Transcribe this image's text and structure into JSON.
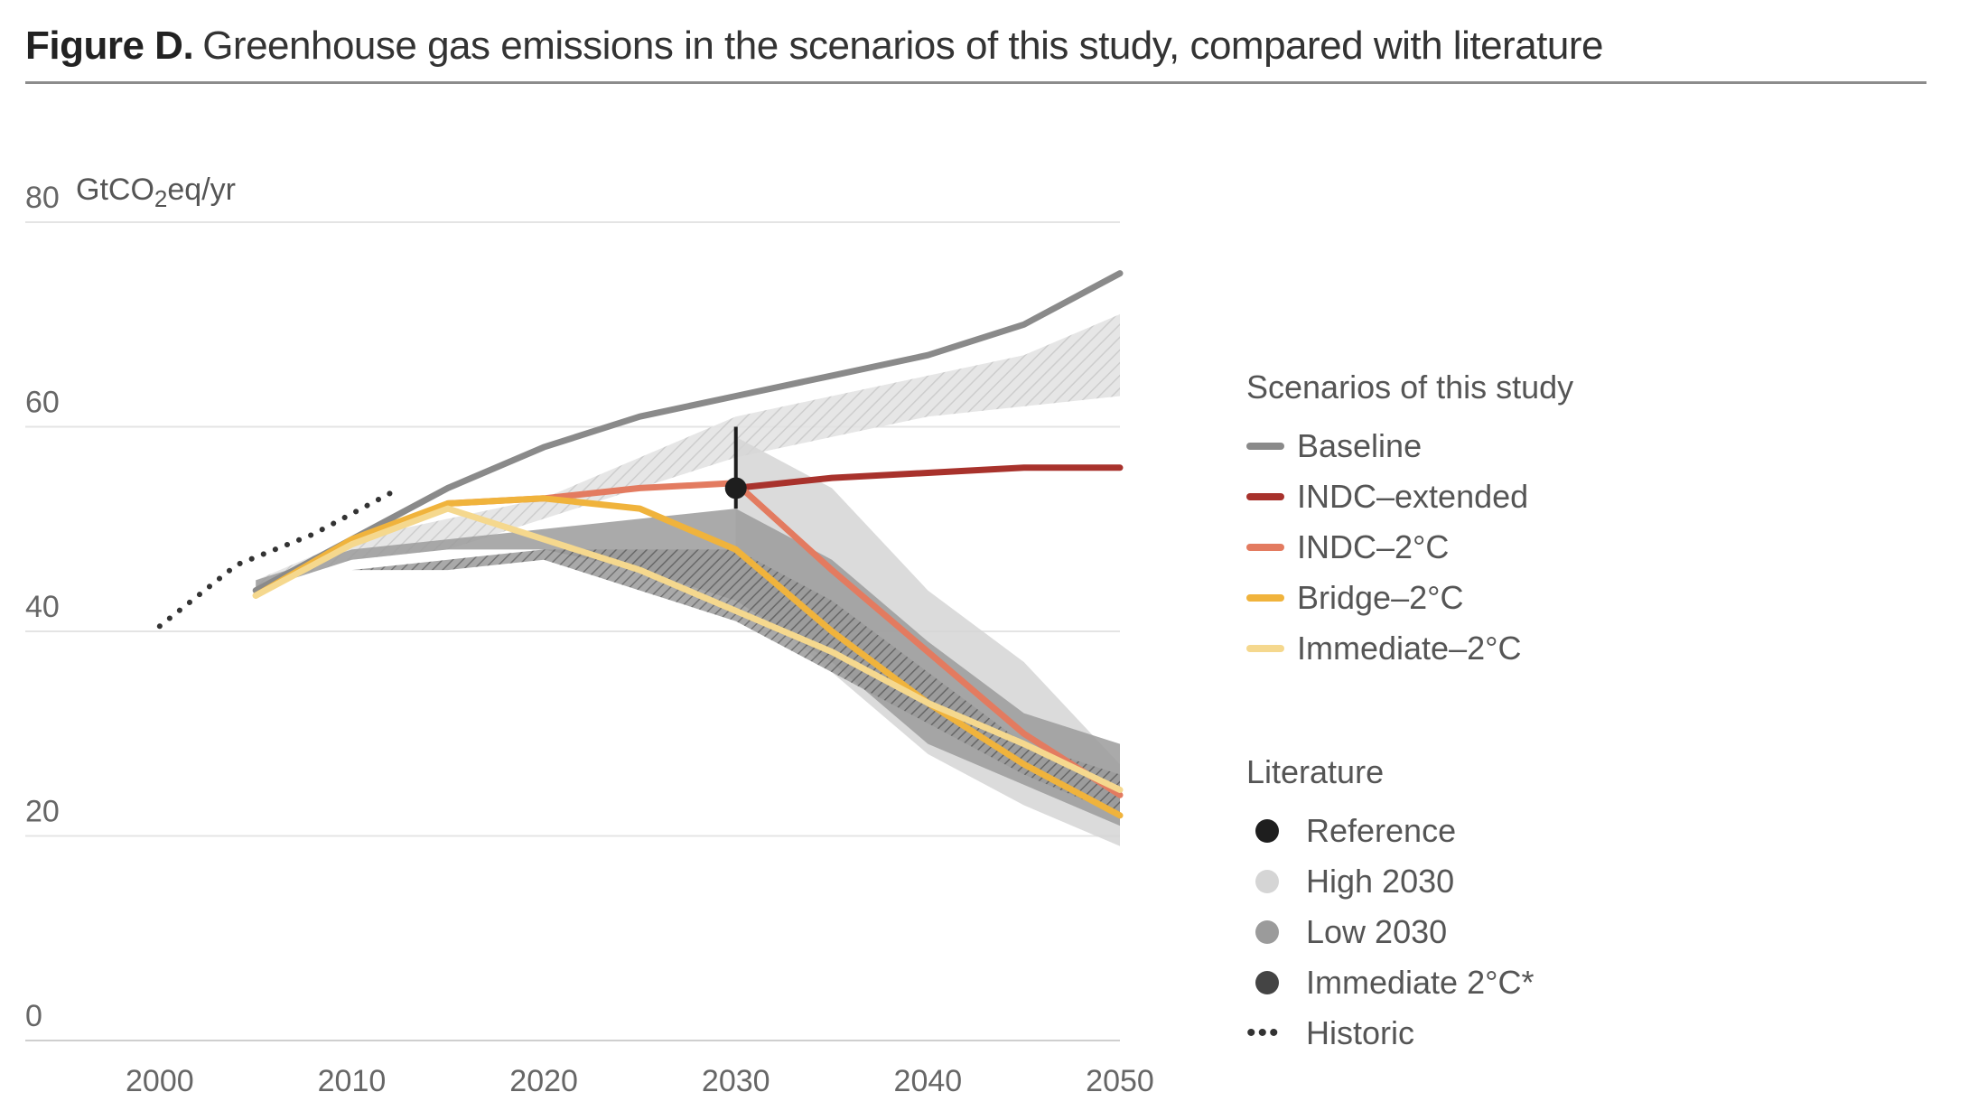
{
  "figure": {
    "prefix": "Figure D.",
    "title": "Greenhouse gas emissions in the scenarios of this study, compared with literature"
  },
  "legend": {
    "scenarios_heading": "Scenarios of this study",
    "scenarios": [
      {
        "label": "Baseline",
        "color": "#8a8a8a"
      },
      {
        "label": "INDC–extended",
        "color": "#a8322c"
      },
      {
        "label": "INDC–2°C",
        "color": "#e37b60"
      },
      {
        "label": "Bridge–2°C",
        "color": "#f0b33c"
      },
      {
        "label": "Immediate–2°C",
        "color": "#f5d88e"
      }
    ],
    "literature_heading": "Literature",
    "literature": [
      {
        "label": "Reference",
        "color": "#1e1e1e",
        "marker": "dot"
      },
      {
        "label": "High 2030",
        "color": "#d5d5d5",
        "marker": "dot"
      },
      {
        "label": "Low 2030",
        "color": "#9b9b9b",
        "marker": "dot"
      },
      {
        "label": "Immediate 2°C*",
        "color": "#444444",
        "marker": "dot"
      },
      {
        "label": "Historic",
        "color": "#333333",
        "marker": "dots",
        "glyph": "•••"
      }
    ]
  },
  "chart_data": {
    "type": "line",
    "title": "Greenhouse gas emissions in the scenarios of this study, compared with literature",
    "ylabel_prefix": "GtCO",
    "ylabel_sub": "2",
    "ylabel_suffix": "eq/yr",
    "xlim": [
      1993,
      2050
    ],
    "ylim": [
      0,
      80
    ],
    "xticks": [
      2000,
      2010,
      2020,
      2030,
      2040,
      2050
    ],
    "yticks": [
      0,
      20,
      40,
      60,
      80
    ],
    "grid": "horizontal",
    "legend_position": "right",
    "bands": [
      {
        "name": "High 2030",
        "fill": "#d5d5d5",
        "pattern": "hatch-light",
        "upper": [
          [
            2005,
            45
          ],
          [
            2010,
            49
          ],
          [
            2015,
            51
          ],
          [
            2020,
            53
          ],
          [
            2025,
            57
          ],
          [
            2030,
            61
          ],
          [
            2035,
            63
          ],
          [
            2040,
            65
          ],
          [
            2045,
            67
          ],
          [
            2050,
            71
          ]
        ],
        "lower": [
          [
            2050,
            63
          ],
          [
            2045,
            62
          ],
          [
            2040,
            61
          ],
          [
            2035,
            59
          ],
          [
            2030,
            57
          ],
          [
            2025,
            54
          ],
          [
            2020,
            51
          ],
          [
            2015,
            48
          ],
          [
            2010,
            47
          ],
          [
            2005,
            44
          ]
        ]
      },
      {
        "name": "High 2030",
        "fill": "#d5d5d5",
        "upper": [
          [
            2030,
            59
          ],
          [
            2035,
            54
          ],
          [
            2040,
            44
          ],
          [
            2045,
            37
          ],
          [
            2050,
            27
          ]
        ],
        "lower": [
          [
            2050,
            19
          ],
          [
            2045,
            23
          ],
          [
            2040,
            28
          ],
          [
            2035,
            36
          ],
          [
            2030,
            44
          ]
        ]
      },
      {
        "name": "Low 2030",
        "fill": "#9b9b9b",
        "upper": [
          [
            2005,
            45
          ],
          [
            2010,
            48
          ],
          [
            2015,
            49
          ],
          [
            2020,
            50
          ],
          [
            2025,
            51
          ],
          [
            2030,
            52
          ],
          [
            2035,
            47
          ],
          [
            2040,
            39
          ],
          [
            2045,
            32
          ],
          [
            2050,
            29
          ]
        ],
        "lower": [
          [
            2050,
            21
          ],
          [
            2045,
            25
          ],
          [
            2040,
            29
          ],
          [
            2035,
            37
          ],
          [
            2030,
            43
          ],
          [
            2025,
            46
          ],
          [
            2020,
            48
          ],
          [
            2015,
            48
          ],
          [
            2010,
            47
          ],
          [
            2005,
            44
          ]
        ]
      },
      {
        "name": "Immediate 2°C*",
        "fill": "#888888",
        "pattern": "hatch-dark",
        "upper": [
          [
            2005,
            44
          ],
          [
            2010,
            46
          ],
          [
            2015,
            47
          ],
          [
            2020,
            48
          ],
          [
            2025,
            48
          ],
          [
            2030,
            48
          ],
          [
            2035,
            43
          ],
          [
            2040,
            36
          ],
          [
            2045,
            29
          ],
          [
            2050,
            26
          ]
        ],
        "lower": [
          [
            2050,
            22
          ],
          [
            2045,
            26
          ],
          [
            2040,
            31
          ],
          [
            2035,
            36
          ],
          [
            2030,
            41
          ],
          [
            2025,
            44
          ],
          [
            2020,
            47
          ],
          [
            2015,
            46
          ],
          [
            2010,
            46
          ],
          [
            2005,
            44
          ]
        ]
      }
    ],
    "series": [
      {
        "name": "Historic",
        "color": "#333333",
        "style": "dotted",
        "x": [
          2000,
          2002,
          2004,
          2006,
          2008,
          2010,
          2012
        ],
        "y": [
          40.5,
          43.5,
          46.5,
          48,
          49.5,
          51.5,
          53.5
        ]
      },
      {
        "name": "Baseline",
        "color": "#8a8a8a",
        "x": [
          2005,
          2010,
          2015,
          2020,
          2025,
          2030,
          2035,
          2040,
          2045,
          2050
        ],
        "y": [
          44,
          49,
          54,
          58,
          61,
          63,
          65,
          67,
          70,
          75
        ]
      },
      {
        "name": "INDC–extended",
        "color": "#a8322c",
        "x": [
          2030,
          2035,
          2040,
          2045,
          2050
        ],
        "y": [
          54,
          55,
          55.5,
          56,
          56
        ]
      },
      {
        "name": "INDC–2°C",
        "color": "#e37b60",
        "x": [
          2015,
          2020,
          2025,
          2030,
          2035,
          2040,
          2045,
          2050
        ],
        "y": [
          52.5,
          53,
          54,
          54.5,
          46,
          38,
          30,
          24
        ]
      },
      {
        "name": "Bridge–2°C",
        "color": "#f0b33c",
        "x": [
          2005,
          2010,
          2015,
          2020,
          2025,
          2030,
          2035,
          2040,
          2045,
          2050
        ],
        "y": [
          43.5,
          49,
          52.5,
          53,
          52,
          48,
          40,
          33,
          27,
          22
        ]
      },
      {
        "name": "Immediate–2°C",
        "color": "#f5d88e",
        "x": [
          2005,
          2010,
          2015,
          2020,
          2025,
          2030,
          2035,
          2040,
          2045,
          2050
        ],
        "y": [
          43.5,
          48.5,
          52,
          49,
          46,
          42,
          38,
          33,
          29,
          24.5
        ]
      }
    ],
    "points": [
      {
        "name": "Reference",
        "x": 2030,
        "y": 54,
        "y_low": 52,
        "y_high": 60,
        "color": "#1e1e1e"
      }
    ]
  }
}
